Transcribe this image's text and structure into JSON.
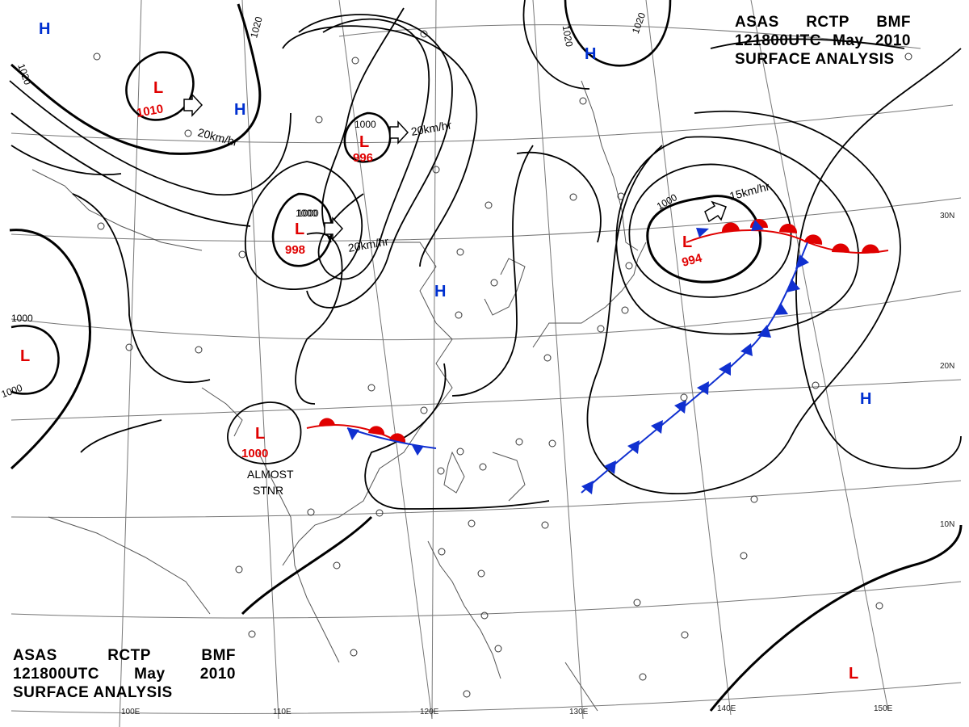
{
  "header": {
    "line1": [
      "ASAS",
      "RCTP",
      "BMF"
    ],
    "line2": [
      "121800UTC",
      "May",
      "2010"
    ],
    "line3": "SURFACE ANALYSIS"
  },
  "longitude_labels": [
    "100E",
    "110E",
    "120E",
    "130E",
    "140E",
    "150E"
  ],
  "latitude_labels": [
    "30N",
    "20N",
    "10N"
  ],
  "pressure_centers": [
    {
      "type": "H",
      "value": ""
    },
    {
      "type": "L",
      "value": "1010"
    },
    {
      "type": "H",
      "value": ""
    },
    {
      "type": "L",
      "value": "996"
    },
    {
      "type": "L",
      "value": "998"
    },
    {
      "type": "H",
      "value": ""
    },
    {
      "type": "H",
      "value": ""
    },
    {
      "type": "L",
      "value": "994"
    },
    {
      "type": "L",
      "value": ""
    },
    {
      "type": "L",
      "value": "1000"
    },
    {
      "type": "H",
      "value": ""
    },
    {
      "type": "L",
      "value": ""
    }
  ],
  "isobar_labels": [
    "1020",
    "1020",
    "1020",
    "1020",
    "1000",
    "1000",
    "1000",
    "1000",
    "1000",
    "1000"
  ],
  "motion_labels": [
    "20km/hr",
    "20km/hr",
    "20km/hr",
    "15km/hr"
  ],
  "notes": [
    "ALMOST",
    "STNR"
  ],
  "colors": {
    "low": "#e00000",
    "high": "#0030d0",
    "warm_front": "#e00000",
    "cold_front": "#1030d0"
  }
}
